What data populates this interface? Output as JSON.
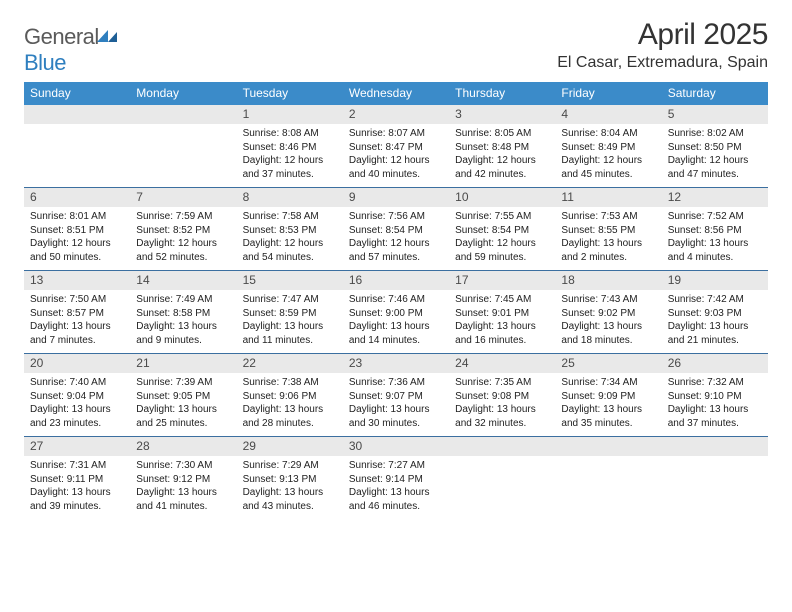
{
  "brand": {
    "name_a": "General",
    "name_b": "Blue"
  },
  "title": "April 2025",
  "location": "El Casar, Extremadura, Spain",
  "colors": {
    "header_bg": "#3b8bc9",
    "rule": "#3b6fa0",
    "daynum_bg": "#e9e9e9",
    "text": "#222222",
    "title_text": "#333333",
    "logo_gray": "#5a5a5a",
    "logo_blue": "#2f7fbf",
    "background": "#ffffff"
  },
  "typography": {
    "month_title_size": 30,
    "location_size": 16,
    "weekday_size": 12,
    "daynum_size": 12,
    "body_size": 10
  },
  "weekdays": [
    "Sunday",
    "Monday",
    "Tuesday",
    "Wednesday",
    "Thursday",
    "Friday",
    "Saturday"
  ],
  "weeks": [
    [
      null,
      null,
      {
        "n": "1",
        "sr": "8:08 AM",
        "ss": "8:46 PM",
        "dl": "12 hours and 37 minutes."
      },
      {
        "n": "2",
        "sr": "8:07 AM",
        "ss": "8:47 PM",
        "dl": "12 hours and 40 minutes."
      },
      {
        "n": "3",
        "sr": "8:05 AM",
        "ss": "8:48 PM",
        "dl": "12 hours and 42 minutes."
      },
      {
        "n": "4",
        "sr": "8:04 AM",
        "ss": "8:49 PM",
        "dl": "12 hours and 45 minutes."
      },
      {
        "n": "5",
        "sr": "8:02 AM",
        "ss": "8:50 PM",
        "dl": "12 hours and 47 minutes."
      }
    ],
    [
      {
        "n": "6",
        "sr": "8:01 AM",
        "ss": "8:51 PM",
        "dl": "12 hours and 50 minutes."
      },
      {
        "n": "7",
        "sr": "7:59 AM",
        "ss": "8:52 PM",
        "dl": "12 hours and 52 minutes."
      },
      {
        "n": "8",
        "sr": "7:58 AM",
        "ss": "8:53 PM",
        "dl": "12 hours and 54 minutes."
      },
      {
        "n": "9",
        "sr": "7:56 AM",
        "ss": "8:54 PM",
        "dl": "12 hours and 57 minutes."
      },
      {
        "n": "10",
        "sr": "7:55 AM",
        "ss": "8:54 PM",
        "dl": "12 hours and 59 minutes."
      },
      {
        "n": "11",
        "sr": "7:53 AM",
        "ss": "8:55 PM",
        "dl": "13 hours and 2 minutes."
      },
      {
        "n": "12",
        "sr": "7:52 AM",
        "ss": "8:56 PM",
        "dl": "13 hours and 4 minutes."
      }
    ],
    [
      {
        "n": "13",
        "sr": "7:50 AM",
        "ss": "8:57 PM",
        "dl": "13 hours and 7 minutes."
      },
      {
        "n": "14",
        "sr": "7:49 AM",
        "ss": "8:58 PM",
        "dl": "13 hours and 9 minutes."
      },
      {
        "n": "15",
        "sr": "7:47 AM",
        "ss": "8:59 PM",
        "dl": "13 hours and 11 minutes."
      },
      {
        "n": "16",
        "sr": "7:46 AM",
        "ss": "9:00 PM",
        "dl": "13 hours and 14 minutes."
      },
      {
        "n": "17",
        "sr": "7:45 AM",
        "ss": "9:01 PM",
        "dl": "13 hours and 16 minutes."
      },
      {
        "n": "18",
        "sr": "7:43 AM",
        "ss": "9:02 PM",
        "dl": "13 hours and 18 minutes."
      },
      {
        "n": "19",
        "sr": "7:42 AM",
        "ss": "9:03 PM",
        "dl": "13 hours and 21 minutes."
      }
    ],
    [
      {
        "n": "20",
        "sr": "7:40 AM",
        "ss": "9:04 PM",
        "dl": "13 hours and 23 minutes."
      },
      {
        "n": "21",
        "sr": "7:39 AM",
        "ss": "9:05 PM",
        "dl": "13 hours and 25 minutes."
      },
      {
        "n": "22",
        "sr": "7:38 AM",
        "ss": "9:06 PM",
        "dl": "13 hours and 28 minutes."
      },
      {
        "n": "23",
        "sr": "7:36 AM",
        "ss": "9:07 PM",
        "dl": "13 hours and 30 minutes."
      },
      {
        "n": "24",
        "sr": "7:35 AM",
        "ss": "9:08 PM",
        "dl": "13 hours and 32 minutes."
      },
      {
        "n": "25",
        "sr": "7:34 AM",
        "ss": "9:09 PM",
        "dl": "13 hours and 35 minutes."
      },
      {
        "n": "26",
        "sr": "7:32 AM",
        "ss": "9:10 PM",
        "dl": "13 hours and 37 minutes."
      }
    ],
    [
      {
        "n": "27",
        "sr": "7:31 AM",
        "ss": "9:11 PM",
        "dl": "13 hours and 39 minutes."
      },
      {
        "n": "28",
        "sr": "7:30 AM",
        "ss": "9:12 PM",
        "dl": "13 hours and 41 minutes."
      },
      {
        "n": "29",
        "sr": "7:29 AM",
        "ss": "9:13 PM",
        "dl": "13 hours and 43 minutes."
      },
      {
        "n": "30",
        "sr": "7:27 AM",
        "ss": "9:14 PM",
        "dl": "13 hours and 46 minutes."
      },
      null,
      null,
      null
    ]
  ],
  "labels": {
    "sunrise": "Sunrise:",
    "sunset": "Sunset:",
    "daylight": "Daylight:"
  }
}
